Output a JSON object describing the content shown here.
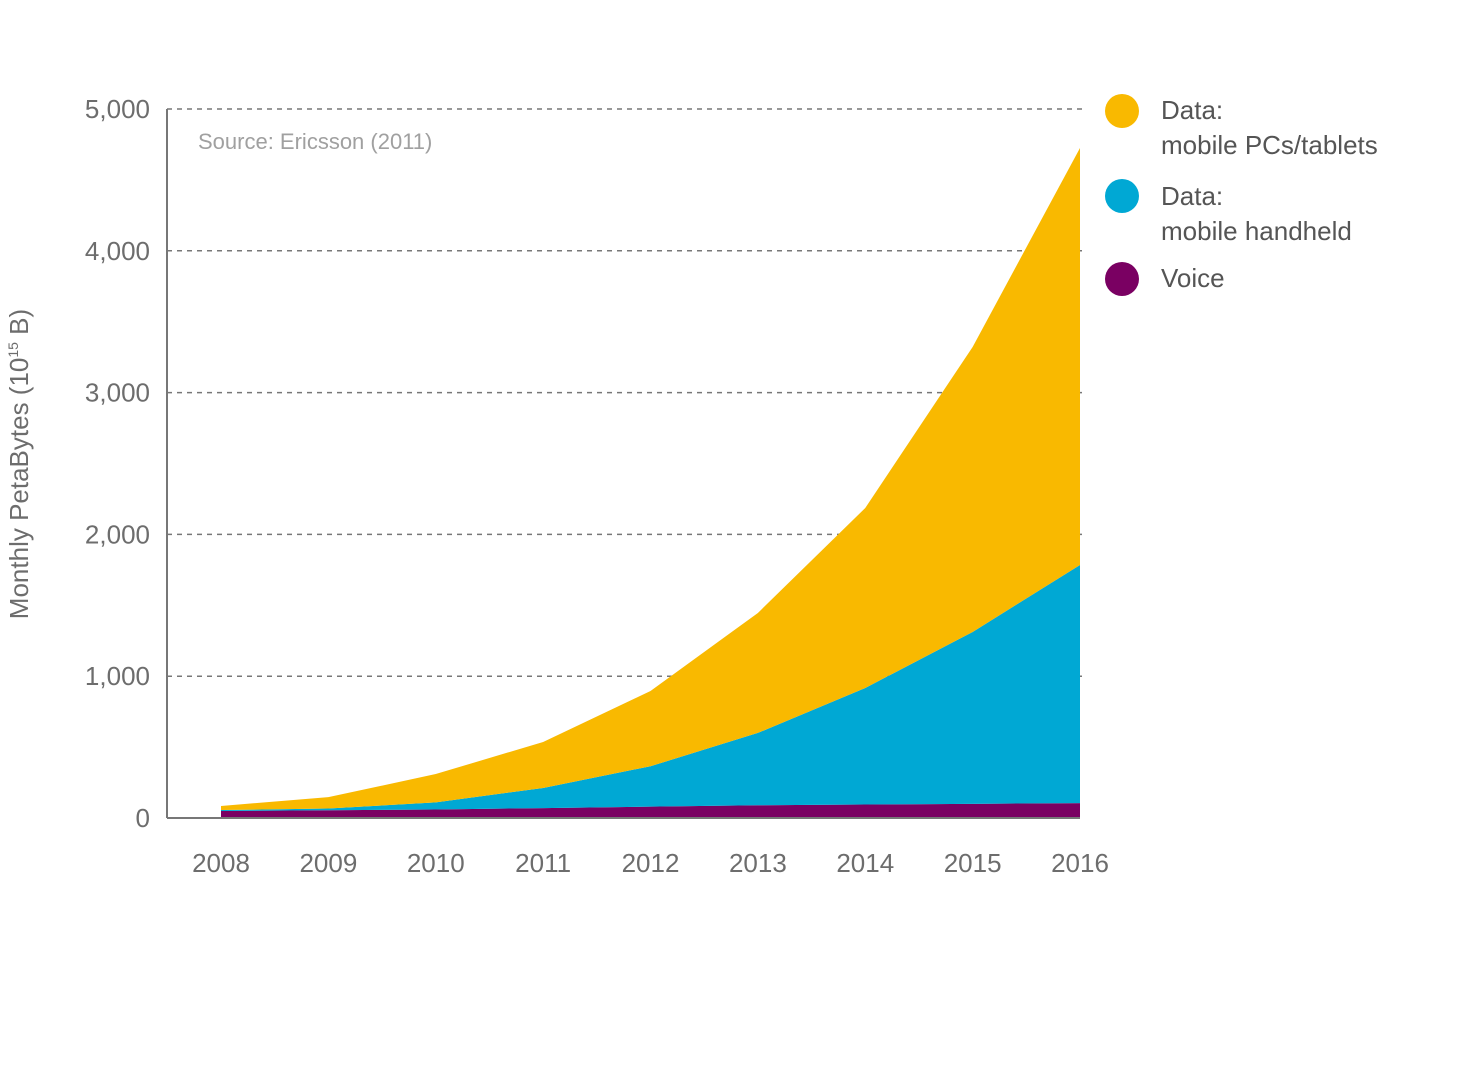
{
  "chart_data": {
    "type": "area",
    "stacked": true,
    "title": "",
    "source_note": "Source: Ericsson (2011)",
    "xlabel": "",
    "ylabel": "Monthly PetaBytes (10",
    "ylabel_sup": "15",
    "ylabel_end": " B)",
    "categories": [
      "2008",
      "2009",
      "2010",
      "2011",
      "2012",
      "2013",
      "2014",
      "2015",
      "2016"
    ],
    "ylim": [
      0,
      5000
    ],
    "yticks": [
      0,
      1000,
      2000,
      3000,
      4000,
      5000
    ],
    "ytick_labels": [
      "0",
      "1,000",
      "2,000",
      "3,000",
      "4,000",
      "5,000"
    ],
    "grid": "horizontal dashed",
    "legend_position": "right",
    "series": [
      {
        "name": "Voice",
        "color": "#7A0062",
        "values": [
          49,
          55,
          60,
          70,
          80,
          90,
          95,
          100,
          105
        ]
      },
      {
        "name_line1": "Data:",
        "name_line2": "mobile handheld",
        "color": "#00A8D4",
        "values": [
          7,
          12,
          50,
          142,
          285,
          510,
          822,
          1212,
          1679
        ]
      },
      {
        "name_line1": "Data:",
        "name_line2": "mobile PCs/tablets",
        "color": "#F9B900",
        "values": [
          29,
          80,
          200,
          324,
          531,
          846,
          1269,
          2010,
          2941
        ]
      }
    ]
  }
}
